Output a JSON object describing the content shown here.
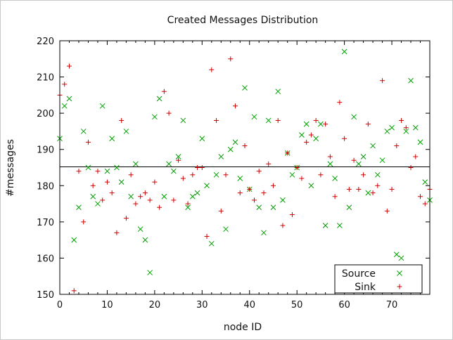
{
  "chart_data": {
    "type": "scatter",
    "title": "Created Messages Distribution",
    "xlabel": "node ID",
    "ylabel": "#messages",
    "xlim": [
      0,
      78
    ],
    "ylim": [
      150,
      220
    ],
    "xticks": [
      "0",
      "10",
      "20",
      "30",
      "40",
      "50",
      "60",
      "70"
    ],
    "yticks": [
      "150",
      "160",
      "170",
      "180",
      "190",
      "200",
      "210",
      "220"
    ],
    "grid": false,
    "legend_position": "bottom-right",
    "mean_line": 185.2,
    "series": [
      {
        "name": "Source",
        "marker": "x",
        "color": "#00a000",
        "points": [
          [
            0,
            193
          ],
          [
            1,
            202
          ],
          [
            2,
            204
          ],
          [
            3,
            165
          ],
          [
            4,
            174
          ],
          [
            5,
            195
          ],
          [
            6,
            185
          ],
          [
            7,
            177
          ],
          [
            8,
            175
          ],
          [
            9,
            202
          ],
          [
            10,
            184
          ],
          [
            11,
            193
          ],
          [
            12,
            185
          ],
          [
            13,
            181
          ],
          [
            14,
            195
          ],
          [
            15,
            177
          ],
          [
            16,
            186
          ],
          [
            17,
            168
          ],
          [
            18,
            165
          ],
          [
            19,
            156
          ],
          [
            20,
            199
          ],
          [
            21,
            204
          ],
          [
            22,
            177
          ],
          [
            23,
            186
          ],
          [
            24,
            184
          ],
          [
            25,
            188
          ],
          [
            26,
            198
          ],
          [
            27,
            174
          ],
          [
            28,
            177
          ],
          [
            29,
            178
          ],
          [
            30,
            193
          ],
          [
            31,
            180
          ],
          [
            32,
            164
          ],
          [
            33,
            183
          ],
          [
            34,
            188
          ],
          [
            35,
            168
          ],
          [
            36,
            190
          ],
          [
            37,
            192
          ],
          [
            38,
            182
          ],
          [
            39,
            207
          ],
          [
            40,
            179
          ],
          [
            41,
            199
          ],
          [
            42,
            174
          ],
          [
            43,
            167
          ],
          [
            44,
            198
          ],
          [
            45,
            174
          ],
          [
            46,
            206
          ],
          [
            47,
            176
          ],
          [
            48,
            189
          ],
          [
            49,
            183
          ],
          [
            50,
            185
          ],
          [
            51,
            194
          ],
          [
            52,
            197
          ],
          [
            53,
            180
          ],
          [
            54,
            193
          ],
          [
            55,
            197
          ],
          [
            56,
            169
          ],
          [
            57,
            186
          ],
          [
            58,
            182
          ],
          [
            59,
            169
          ],
          [
            60,
            217
          ],
          [
            61,
            174
          ],
          [
            62,
            199
          ],
          [
            63,
            186
          ],
          [
            64,
            188
          ],
          [
            65,
            178
          ],
          [
            66,
            191
          ],
          [
            67,
            183
          ],
          [
            68,
            187
          ],
          [
            69,
            195
          ],
          [
            70,
            196
          ],
          [
            71,
            161
          ],
          [
            72,
            160
          ],
          [
            73,
            195
          ],
          [
            74,
            209
          ],
          [
            75,
            196
          ],
          [
            76,
            192
          ],
          [
            77,
            181
          ],
          [
            78,
            176
          ]
        ]
      },
      {
        "name": "Sink",
        "marker": "+",
        "color": "#d00000",
        "points": [
          [
            0,
            205
          ],
          [
            1,
            208
          ],
          [
            2,
            213
          ],
          [
            3,
            151
          ],
          [
            4,
            184
          ],
          [
            5,
            170
          ],
          [
            6,
            192
          ],
          [
            7,
            180
          ],
          [
            8,
            184
          ],
          [
            9,
            176
          ],
          [
            10,
            181
          ],
          [
            11,
            178
          ],
          [
            12,
            167
          ],
          [
            13,
            198
          ],
          [
            14,
            171
          ],
          [
            15,
            183
          ],
          [
            16,
            175
          ],
          [
            17,
            177
          ],
          [
            18,
            178
          ],
          [
            19,
            176
          ],
          [
            20,
            181
          ],
          [
            21,
            174
          ],
          [
            22,
            206
          ],
          [
            23,
            200
          ],
          [
            24,
            176
          ],
          [
            25,
            187
          ],
          [
            26,
            182
          ],
          [
            27,
            175
          ],
          [
            28,
            183
          ],
          [
            29,
            185
          ],
          [
            30,
            185
          ],
          [
            31,
            166
          ],
          [
            32,
            212
          ],
          [
            33,
            198
          ],
          [
            34,
            173
          ],
          [
            35,
            183
          ],
          [
            36,
            215
          ],
          [
            37,
            202
          ],
          [
            38,
            178
          ],
          [
            39,
            191
          ],
          [
            40,
            179
          ],
          [
            41,
            176
          ],
          [
            42,
            184
          ],
          [
            43,
            178
          ],
          [
            44,
            186
          ],
          [
            45,
            180
          ],
          [
            46,
            198
          ],
          [
            47,
            169
          ],
          [
            48,
            189
          ],
          [
            49,
            172
          ],
          [
            50,
            185
          ],
          [
            51,
            182
          ],
          [
            52,
            192
          ],
          [
            53,
            194
          ],
          [
            54,
            198
          ],
          [
            55,
            183
          ],
          [
            56,
            197
          ],
          [
            57,
            188
          ],
          [
            58,
            177
          ],
          [
            59,
            203
          ],
          [
            60,
            193
          ],
          [
            61,
            179
          ],
          [
            62,
            187
          ],
          [
            63,
            179
          ],
          [
            64,
            183
          ],
          [
            65,
            197
          ],
          [
            66,
            178
          ],
          [
            67,
            180
          ],
          [
            68,
            209
          ],
          [
            69,
            173
          ],
          [
            70,
            179
          ],
          [
            71,
            191
          ],
          [
            72,
            198
          ],
          [
            73,
            196
          ],
          [
            74,
            185
          ],
          [
            75,
            188
          ],
          [
            76,
            177
          ],
          [
            77,
            175
          ],
          [
            78,
            179
          ]
        ]
      }
    ]
  }
}
